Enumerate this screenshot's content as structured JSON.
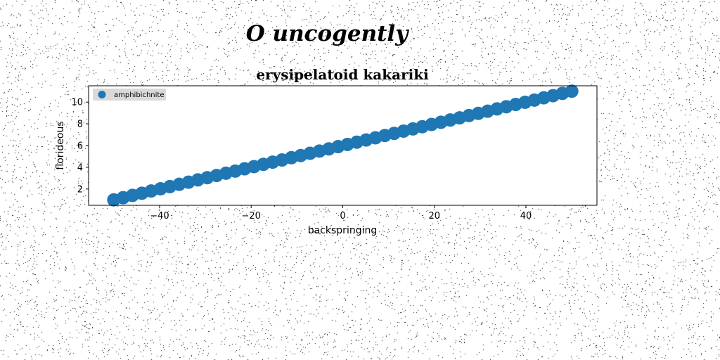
{
  "page": {
    "supertitle": "O uncogently"
  },
  "colors": {
    "series": "#1f77b4",
    "noise": "#000000",
    "legend_bg": "#d9d9d9"
  },
  "chart_data": {
    "type": "scatter",
    "title": "erysipelatoid kakariki",
    "xlabel": "backspringing",
    "ylabel": "florideous",
    "xlim": [
      -55.5,
      55.5
    ],
    "ylim": [
      0.5,
      11.5
    ],
    "xticks": [
      -40,
      -20,
      0,
      20,
      40
    ],
    "yticks": [
      2,
      4,
      6,
      8,
      10
    ],
    "grid": false,
    "legend": "top-left",
    "series": [
      {
        "name": "amphibichnite",
        "color": "#1f77b4",
        "x_start": -50,
        "x_end": 50,
        "count": 50,
        "y_start": 1,
        "y_end": 11,
        "x": [
          -50.0,
          -47.96,
          -45.92,
          -43.88,
          -41.84,
          -39.8,
          -37.76,
          -35.71,
          -33.67,
          -31.63,
          -29.59,
          -27.55,
          -25.51,
          -23.47,
          -21.43,
          -19.39,
          -17.35,
          -15.31,
          -13.27,
          -11.22,
          -9.18,
          -7.14,
          -5.1,
          -3.06,
          -1.02,
          1.02,
          3.06,
          5.1,
          7.14,
          9.18,
          11.22,
          13.27,
          15.31,
          17.35,
          19.39,
          21.43,
          23.47,
          25.51,
          27.55,
          29.59,
          31.63,
          33.67,
          35.71,
          37.76,
          39.8,
          41.84,
          43.88,
          45.92,
          47.96,
          50.0
        ],
        "y": [
          1.0,
          1.2,
          1.41,
          1.61,
          1.82,
          2.02,
          2.22,
          2.43,
          2.63,
          2.84,
          3.04,
          3.24,
          3.45,
          3.65,
          3.86,
          4.06,
          4.27,
          4.47,
          4.67,
          4.88,
          5.08,
          5.29,
          5.49,
          5.69,
          5.9,
          6.1,
          6.31,
          6.51,
          6.71,
          6.92,
          7.12,
          7.33,
          7.53,
          7.73,
          7.94,
          8.14,
          8.35,
          8.55,
          8.76,
          8.96,
          9.16,
          9.37,
          9.57,
          9.78,
          9.98,
          10.18,
          10.39,
          10.59,
          10.8,
          11.0
        ]
      }
    ]
  }
}
